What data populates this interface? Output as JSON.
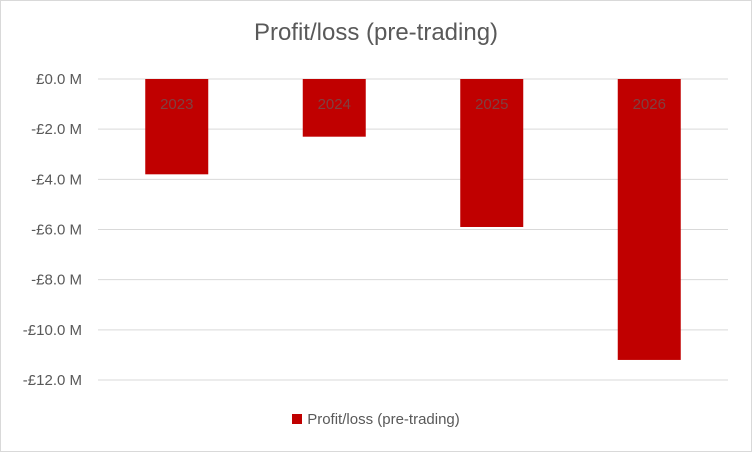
{
  "chart_data": {
    "type": "bar",
    "title": "Profit/loss (pre-trading)",
    "categories": [
      "2023",
      "2024",
      "2025",
      "2026"
    ],
    "series": [
      {
        "name": "Profit/loss (pre-trading)",
        "values": [
          -3.8,
          -2.3,
          -5.9,
          -11.2
        ],
        "color": "#C00000"
      }
    ],
    "unit": "£M",
    "ylim": [
      -12,
      0
    ],
    "yticks": [
      "£0.0 M",
      "-£2.0 M",
      "-£4.0 M",
      "-£6.0 M",
      "-£8.0 M",
      "-£10.0 M",
      "-£12.0 M"
    ],
    "ytick_values": [
      0,
      -2,
      -4,
      -6,
      -8,
      -10,
      -12
    ],
    "xlabel": "",
    "ylabel": "",
    "grid": true,
    "legend": "bottom",
    "category_label_position": "inside-top"
  }
}
